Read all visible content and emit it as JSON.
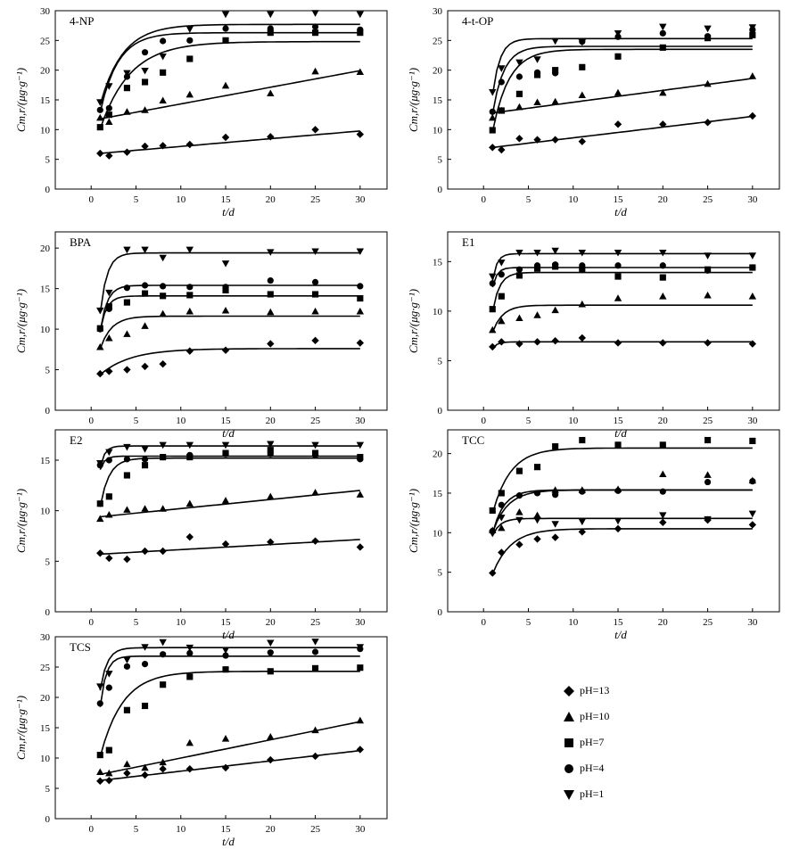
{
  "chart_data": [
    {
      "type": "scatter",
      "title": "4-NP",
      "xlabel": "t/d",
      "ylabel": "Cm,r/(μg·g⁻¹)",
      "xlim": [
        -4,
        33
      ],
      "ylim": [
        0,
        30
      ],
      "xticks": [
        "0",
        "5",
        "10",
        "15",
        "20",
        "25",
        "30"
      ],
      "yticks": [
        "0",
        "5",
        "10",
        "15",
        "20",
        "25",
        "30"
      ],
      "x": [
        1,
        2,
        4,
        6,
        8,
        11,
        15,
        20,
        25,
        30
      ],
      "series": [
        {
          "name": "pH=13",
          "values": [
            6.0,
            5.6,
            6.2,
            7.2,
            7.3,
            7.5,
            8.7,
            8.8,
            10.0,
            9.2
          ],
          "fit": {
            "model": "linear",
            "a": 6.0,
            "b": 0.13
          }
        },
        {
          "name": "pH=10",
          "values": [
            12.0,
            11.3,
            13.0,
            13.3,
            14.9,
            15.9,
            17.4,
            16.1,
            19.8,
            19.7
          ],
          "fit": {
            "model": "linear",
            "a": 11.8,
            "b": 0.28
          }
        },
        {
          "name": "pH=7",
          "values": [
            10.4,
            12.5,
            17.0,
            18.0,
            19.6,
            21.9,
            25.0,
            26.3,
            26.3,
            26.3
          ],
          "fit": {
            "model": "exp",
            "qe": 24.8,
            "k": 0.3
          }
        },
        {
          "name": "pH=4",
          "values": [
            13.3,
            13.6,
            18.9,
            23.0,
            24.9,
            25.0,
            27.0,
            27.0,
            27.3,
            26.8
          ],
          "fit": {
            "model": "exp",
            "qe": 26.3,
            "k": 0.5
          }
        },
        {
          "name": "pH=1",
          "values": [
            14.6,
            17.3,
            19.5,
            19.9,
            22.3,
            26.9,
            29.4,
            29.4,
            29.6,
            29.4
          ],
          "fit": {
            "model": "exp",
            "qe": 27.7,
            "k": 0.4
          }
        }
      ]
    },
    {
      "type": "scatter",
      "title": "4-t-OP",
      "xlabel": "t/d",
      "ylabel": "Cm,r/(μg·g⁻¹)",
      "xlim": [
        -4,
        33
      ],
      "ylim": [
        0,
        30
      ],
      "xticks": [
        "0",
        "5",
        "10",
        "15",
        "20",
        "25",
        "30"
      ],
      "yticks": [
        "0",
        "5",
        "10",
        "15",
        "20",
        "25",
        "30"
      ],
      "x": [
        1,
        2,
        4,
        6,
        8,
        11,
        15,
        20,
        25,
        30
      ],
      "series": [
        {
          "name": "pH=13",
          "values": [
            7.0,
            6.6,
            8.5,
            8.3,
            8.3,
            8.0,
            10.9,
            10.9,
            11.2,
            12.3
          ],
          "fit": {
            "model": "linear",
            "a": 7.0,
            "b": 0.18
          }
        },
        {
          "name": "pH=10",
          "values": [
            12.0,
            13.2,
            13.8,
            14.6,
            14.7,
            15.8,
            16.2,
            16.2,
            17.7,
            19.0
          ],
          "fit": {
            "model": "linear",
            "a": 12.8,
            "b": 0.2
          }
        },
        {
          "name": "pH=7",
          "values": [
            9.9,
            13.2,
            16.0,
            19.2,
            20.0,
            20.5,
            22.3,
            23.8,
            25.4,
            25.9
          ],
          "fit": {
            "model": "exp",
            "qe": 23.5,
            "k": 0.55
          }
        },
        {
          "name": "pH=4",
          "values": [
            13.0,
            18.0,
            18.9,
            19.6,
            19.5,
            24.8,
            25.6,
            26.2,
            25.7,
            26.8
          ],
          "fit": {
            "model": "exp",
            "qe": 24.0,
            "k": 0.8
          }
        },
        {
          "name": "pH=1",
          "values": [
            16.3,
            20.3,
            21.3,
            21.8,
            24.9,
            24.7,
            26.2,
            27.3,
            27.0,
            27.2
          ],
          "fit": {
            "model": "exp",
            "qe": 25.3,
            "k": 1.2
          }
        }
      ]
    },
    {
      "type": "scatter",
      "title": "BPA",
      "xlabel": "t/d",
      "ylabel": "Cm,r/(μg·g⁻¹)",
      "xlim": [
        -4,
        33
      ],
      "ylim": [
        0,
        22
      ],
      "xticks": [
        "0",
        "5",
        "10",
        "15",
        "20",
        "25",
        "30"
      ],
      "yticks": [
        "0",
        "5",
        "10",
        "15",
        "20"
      ],
      "x": [
        1,
        2,
        4,
        6,
        8,
        11,
        15,
        20,
        25,
        30
      ],
      "series": [
        {
          "name": "pH=13",
          "values": [
            4.5,
            4.8,
            5.0,
            5.4,
            5.7,
            7.3,
            7.4,
            8.2,
            8.6,
            8.3
          ],
          "fit": {
            "model": "exp",
            "qe": 7.6,
            "k": 0.3
          }
        },
        {
          "name": "pH=10",
          "values": [
            7.8,
            8.9,
            9.4,
            10.4,
            11.9,
            12.2,
            12.3,
            12.1,
            12.2,
            12.2
          ],
          "fit": {
            "model": "exp",
            "qe": 11.6,
            "k": 0.8
          }
        },
        {
          "name": "pH=7",
          "values": [
            10.1,
            12.8,
            13.3,
            14.4,
            14.1,
            14.2,
            14.8,
            14.3,
            14.3,
            13.8
          ],
          "fit": {
            "model": "exp",
            "qe": 14.1,
            "k": 1.4
          }
        },
        {
          "name": "pH=4",
          "values": [
            10.0,
            12.5,
            15.1,
            15.4,
            15.3,
            15.2,
            15.2,
            16.0,
            15.8,
            15.3
          ],
          "fit": {
            "model": "exp",
            "qe": 15.4,
            "k": 1.3
          }
        },
        {
          "name": "pH=1",
          "values": [
            12.3,
            14.5,
            19.8,
            19.8,
            18.8,
            19.8,
            18.1,
            19.5,
            19.6,
            19.6
          ],
          "fit": {
            "model": "exp",
            "qe": 19.4,
            "k": 1.3
          }
        }
      ]
    },
    {
      "type": "scatter",
      "title": "E1",
      "xlabel": "t/d",
      "ylabel": "Cm,r/(μg·g⁻¹)",
      "xlim": [
        -4,
        33
      ],
      "ylim": [
        0,
        18
      ],
      "xticks": [
        "0",
        "5",
        "10",
        "15",
        "20",
        "25",
        "30"
      ],
      "yticks": [
        "0",
        "5",
        "10",
        "15"
      ],
      "x": [
        1,
        2,
        4,
        6,
        8,
        11,
        15,
        20,
        25,
        30
      ],
      "series": [
        {
          "name": "pH=13",
          "values": [
            6.4,
            6.9,
            6.7,
            6.9,
            7.0,
            7.3,
            6.8,
            6.8,
            6.8,
            6.7
          ],
          "fit": {
            "model": "exp",
            "qe": 6.9,
            "k": 2.0
          }
        },
        {
          "name": "pH=10",
          "values": [
            8.1,
            9.0,
            9.3,
            9.6,
            10.1,
            10.7,
            11.3,
            11.5,
            11.6,
            11.5
          ],
          "fit": {
            "model": "exp",
            "qe": 10.6,
            "k": 0.9
          }
        },
        {
          "name": "pH=7",
          "values": [
            10.2,
            11.5,
            13.6,
            14.3,
            14.5,
            14.2,
            13.5,
            13.4,
            14.2,
            14.4
          ],
          "fit": {
            "model": "exp",
            "qe": 13.9,
            "k": 1.3
          }
        },
        {
          "name": "pH=4",
          "values": [
            12.8,
            13.7,
            14.2,
            14.6,
            14.7,
            14.6,
            14.6,
            14.6,
            14.1,
            14.4
          ],
          "fit": {
            "model": "exp",
            "qe": 14.4,
            "k": 2.0
          }
        },
        {
          "name": "pH=1",
          "values": [
            13.5,
            14.9,
            15.9,
            15.9,
            16.1,
            15.9,
            15.9,
            15.9,
            15.6,
            15.6
          ],
          "fit": {
            "model": "exp",
            "qe": 15.8,
            "k": 2.0
          }
        }
      ]
    },
    {
      "type": "scatter",
      "title": "E2",
      "xlabel": "t/d",
      "ylabel": "Cm,r/(μg·g⁻¹)",
      "xlim": [
        -4,
        33
      ],
      "ylim": [
        0,
        18
      ],
      "xticks": [
        "0",
        "5",
        "10",
        "15",
        "20",
        "25",
        "30"
      ],
      "yticks": [
        "0",
        "5",
        "10",
        "15"
      ],
      "x": [
        1,
        2,
        4,
        6,
        8,
        11,
        15,
        20,
        25,
        30
      ],
      "series": [
        {
          "name": "pH=13",
          "values": [
            5.8,
            5.3,
            5.2,
            6.0,
            6.0,
            7.4,
            6.7,
            6.9,
            7.0,
            6.4
          ],
          "fit": {
            "model": "linear",
            "a": 5.7,
            "b": 0.05
          }
        },
        {
          "name": "pH=10",
          "values": [
            9.2,
            9.6,
            10.1,
            10.2,
            10.2,
            10.7,
            11.0,
            11.4,
            11.8,
            11.6
          ],
          "fit": {
            "model": "linear",
            "a": 9.4,
            "b": 0.09
          }
        },
        {
          "name": "pH=7",
          "values": [
            10.7,
            11.4,
            13.5,
            14.5,
            15.3,
            15.3,
            15.7,
            16.0,
            15.7,
            15.3
          ],
          "fit": {
            "model": "exp",
            "qe": 15.2,
            "k": 1.0
          }
        },
        {
          "name": "pH=4",
          "values": [
            14.5,
            15.0,
            15.1,
            15.1,
            15.3,
            15.5,
            15.6,
            15.6,
            15.5,
            15.1
          ],
          "fit": {
            "model": "exp",
            "qe": 15.4,
            "k": 2.0
          }
        },
        {
          "name": "pH=1",
          "values": [
            14.7,
            15.8,
            16.3,
            16.1,
            16.5,
            16.5,
            16.5,
            16.6,
            16.5,
            16.5
          ],
          "fit": {
            "model": "exp",
            "qe": 16.4,
            "k": 2.0
          }
        }
      ]
    },
    {
      "type": "scatter",
      "title": "TCC",
      "xlabel": "t/d",
      "ylabel": "Cm,r/(μg·g⁻¹)",
      "xlim": [
        -4,
        33
      ],
      "ylim": [
        0,
        23
      ],
      "xticks": [
        "0",
        "5",
        "10",
        "15",
        "20",
        "25",
        "30"
      ],
      "yticks": [
        "0",
        "5",
        "10",
        "15",
        "20"
      ],
      "x": [
        1,
        2,
        4,
        6,
        8,
        11,
        15,
        20,
        25,
        30
      ],
      "series": [
        {
          "name": "pH=13",
          "values": [
            4.9,
            7.5,
            8.5,
            9.2,
            9.4,
            10.1,
            10.5,
            11.3,
            11.6,
            11.0
          ],
          "fit": {
            "model": "exp",
            "qe": 10.5,
            "k": 0.5
          }
        },
        {
          "name": "pH=10",
          "values": [
            10.3,
            10.6,
            12.6,
            12.2,
            15.4,
            15.4,
            15.5,
            17.4,
            17.3,
            16.6
          ],
          "fit": {
            "model": "exp",
            "qe": 15.4,
            "k": 0.6
          }
        },
        {
          "name": "pH=7",
          "values": [
            12.8,
            15.0,
            17.8,
            18.3,
            20.9,
            21.7,
            21.1,
            21.1,
            21.7,
            21.6
          ],
          "fit": {
            "model": "exp",
            "qe": 20.7,
            "k": 0.5
          }
        },
        {
          "name": "pH=4",
          "values": [
            10.2,
            13.5,
            14.7,
            15.0,
            14.8,
            15.2,
            15.3,
            15.2,
            16.4,
            16.5
          ],
          "fit": {
            "model": "exp",
            "qe": 15.4,
            "k": 0.8
          }
        },
        {
          "name": "pH=1",
          "values": [
            9.9,
            11.9,
            11.6,
            11.6,
            11.1,
            11.4,
            11.5,
            12.2,
            11.7,
            12.4
          ],
          "fit": {
            "model": "exp",
            "qe": 11.8,
            "k": 1.2
          }
        }
      ]
    },
    {
      "type": "scatter",
      "title": "TCS",
      "xlabel": "t/d",
      "ylabel": "Cm,r/(μg·g⁻¹)",
      "xlim": [
        -4,
        33
      ],
      "ylim": [
        0,
        30
      ],
      "xticks": [
        "0",
        "5",
        "10",
        "15",
        "20",
        "25",
        "30"
      ],
      "yticks": [
        "0",
        "5",
        "10",
        "15",
        "20",
        "25",
        "30"
      ],
      "x": [
        1,
        2,
        4,
        6,
        8,
        11,
        15,
        20,
        25,
        30
      ],
      "series": [
        {
          "name": "pH=13",
          "values": [
            6.2,
            6.3,
            7.5,
            7.2,
            8.2,
            8.2,
            8.4,
            9.7,
            10.3,
            11.4
          ],
          "fit": {
            "model": "linear",
            "a": 6.3,
            "b": 0.17
          }
        },
        {
          "name": "pH=10",
          "values": [
            7.7,
            7.5,
            9.0,
            8.4,
            9.3,
            12.5,
            13.2,
            13.5,
            14.6,
            16.2
          ],
          "fit": {
            "model": "linear",
            "a": 7.3,
            "b": 0.3
          }
        },
        {
          "name": "pH=7",
          "values": [
            10.5,
            11.3,
            17.9,
            18.6,
            22.1,
            23.4,
            24.6,
            24.3,
            24.8,
            24.9
          ],
          "fit": {
            "model": "exp",
            "qe": 24.3,
            "k": 0.4
          }
        },
        {
          "name": "pH=4",
          "values": [
            19.0,
            21.6,
            25.1,
            25.5,
            27.1,
            27.3,
            26.9,
            27.4,
            27.5,
            28.0
          ],
          "fit": {
            "model": "exp",
            "qe": 26.8,
            "k": 1.5
          }
        },
        {
          "name": "pH=1",
          "values": [
            21.8,
            23.9,
            26.2,
            28.3,
            29.1,
            28.2,
            27.8,
            29.0,
            29.2,
            28.3
          ],
          "fit": {
            "model": "exp",
            "qe": 28.2,
            "k": 1.3
          }
        }
      ]
    }
  ],
  "legend": {
    "entries": [
      {
        "label": "pH=13",
        "marker": "diamond"
      },
      {
        "label": "pH=10",
        "marker": "triangle-up"
      },
      {
        "label": "pH=7",
        "marker": "square"
      },
      {
        "label": "pH=4",
        "marker": "circle"
      },
      {
        "label": "pH=1",
        "marker": "triangle-down"
      }
    ]
  },
  "colors": {
    "ink": "#000000",
    "background": "#ffffff"
  }
}
